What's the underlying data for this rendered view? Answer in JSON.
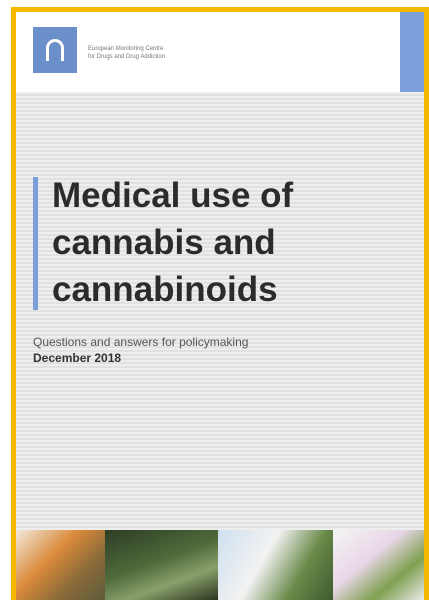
{
  "header": {
    "organization": [
      "European Monitoring Centre",
      "for Drugs and Drug Addiction"
    ]
  },
  "title_lines": [
    "Medical use of",
    "cannabis and",
    "cannabinoids"
  ],
  "subtitle": "Questions and answers for policymaking",
  "date": "December 2018"
}
